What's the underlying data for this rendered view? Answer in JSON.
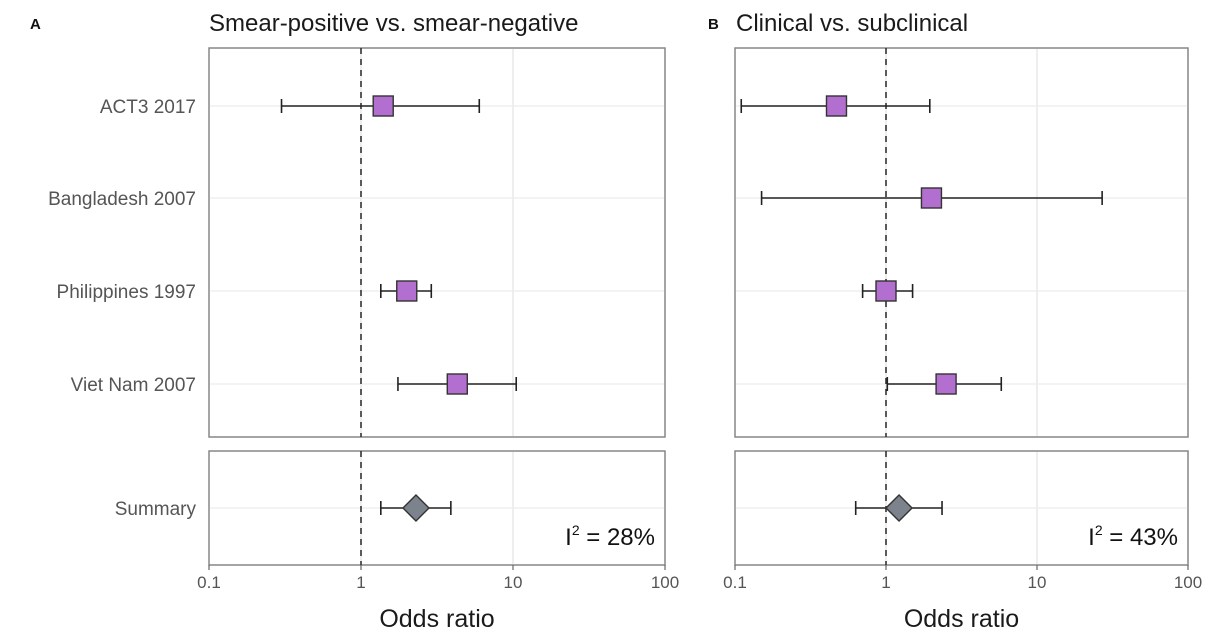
{
  "chart_data": [
    {
      "type": "forest",
      "panel_letter": "A",
      "title": "Smear-positive vs. smear-negative",
      "xlabel": "Odds ratio",
      "xscale": "log",
      "xlim": [
        0.1,
        100
      ],
      "xticks": [
        0.1,
        1,
        10,
        100
      ],
      "xtick_labels": [
        "0.1",
        "1",
        "10",
        "100"
      ],
      "reference_line": 1,
      "studies": [
        {
          "label": "ACT3 2017",
          "or": 1.4,
          "lower": 0.3,
          "upper": 6.0
        },
        {
          "label": "Bangladesh 2007",
          "or": null,
          "lower": null,
          "upper": null
        },
        {
          "label": "Philippines 1997",
          "or": 2.0,
          "lower": 1.35,
          "upper": 2.9
        },
        {
          "label": "Viet Nam 2007",
          "or": 4.3,
          "lower": 1.75,
          "upper": 10.5
        }
      ],
      "summary": {
        "label": "Summary",
        "or": 2.3,
        "lower": 1.35,
        "upper": 3.9
      },
      "heterogeneity": {
        "prefix": "I",
        "sup": "2",
        "text": " = 28%"
      }
    },
    {
      "type": "forest",
      "panel_letter": "B",
      "title": "Clinical vs. subclinical",
      "xlabel": "Odds ratio",
      "xscale": "log",
      "xlim": [
        0.1,
        100
      ],
      "xticks": [
        0.1,
        1,
        10,
        100
      ],
      "xtick_labels": [
        "0.1",
        "1",
        "10",
        "100"
      ],
      "reference_line": 1,
      "studies": [
        {
          "label": "ACT3 2017",
          "or": 0.47,
          "lower": 0.11,
          "upper": 1.95
        },
        {
          "label": "Bangladesh 2007",
          "or": 2.0,
          "lower": 0.15,
          "upper": 27
        },
        {
          "label": "Philippines 1997",
          "or": 1.0,
          "lower": 0.7,
          "upper": 1.5
        },
        {
          "label": "Viet Nam 2007",
          "or": 2.5,
          "lower": 1.02,
          "upper": 5.8
        }
      ],
      "summary": {
        "label": "Summary",
        "or": 1.22,
        "lower": 0.63,
        "upper": 2.35
      },
      "heterogeneity": {
        "prefix": "I",
        "sup": "2",
        "text": " = 43%"
      }
    }
  ],
  "colors": {
    "study_marker": "#b26fd0",
    "summary_marker": "#7c838c"
  }
}
